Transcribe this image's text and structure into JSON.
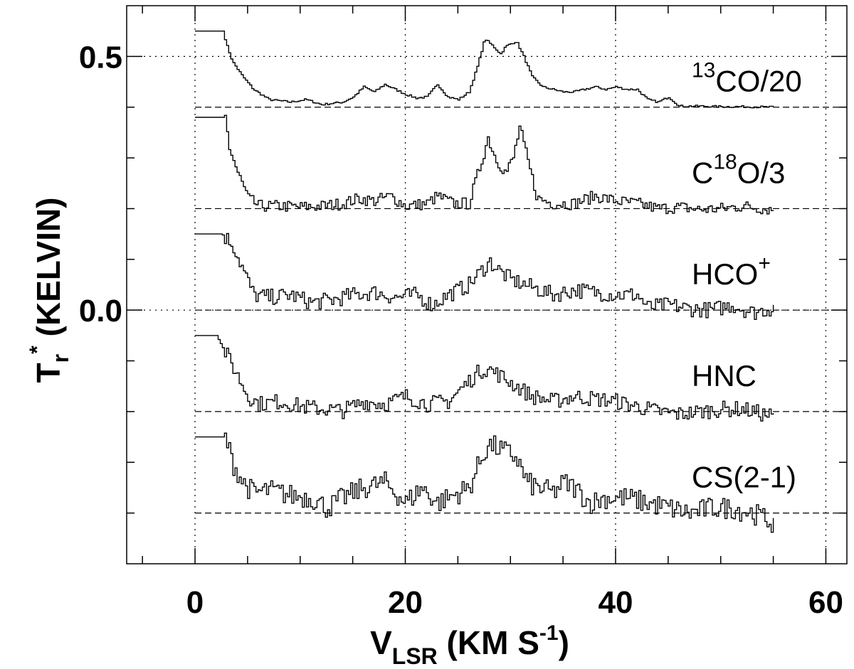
{
  "chart_data": {
    "type": "line",
    "title": "",
    "xlabel": {
      "main": "V",
      "sub": "LSR",
      "rest": " (KM S",
      "sup": "-1",
      "close": ")"
    },
    "ylabel": {
      "main": "T",
      "sub": "r",
      "sup": "*",
      "rest": " (KELVIN)"
    },
    "xlim": [
      -6.5,
      62
    ],
    "ylim": [
      -0.5,
      0.6
    ],
    "x_ticks": [
      0,
      20,
      40,
      60
    ],
    "x_tick_labels": [
      "0",
      "20",
      "40",
      "60"
    ],
    "y_ticks": [
      0.0,
      0.5
    ],
    "y_tick_labels": [
      "0.0",
      "0.5"
    ],
    "grid": true,
    "style": "step",
    "series": [
      {
        "name_parts": [
          {
            "t": "13",
            "sup": true
          },
          {
            "t": "CO/20"
          }
        ],
        "baseline": 0.4,
        "points": [
          [
            0,
            0.55
          ],
          [
            2.6,
            0.55
          ],
          [
            3,
            0.52
          ],
          [
            3.5,
            0.49
          ],
          [
            4.5,
            0.46
          ],
          [
            5.5,
            0.435
          ],
          [
            7,
            0.415
          ],
          [
            9,
            0.41
          ],
          [
            10.5,
            0.415
          ],
          [
            12,
            0.405
          ],
          [
            14,
            0.41
          ],
          [
            15,
            0.42
          ],
          [
            16,
            0.44
          ],
          [
            17,
            0.43
          ],
          [
            18,
            0.445
          ],
          [
            19,
            0.435
          ],
          [
            20,
            0.425
          ],
          [
            21,
            0.418
          ],
          [
            22,
            0.42
          ],
          [
            23,
            0.445
          ],
          [
            24,
            0.42
          ],
          [
            25,
            0.415
          ],
          [
            26,
            0.43
          ],
          [
            26.8,
            0.48
          ],
          [
            27.5,
            0.535
          ],
          [
            28.3,
            0.52
          ],
          [
            29,
            0.505
          ],
          [
            29.5,
            0.52
          ],
          [
            30.5,
            0.53
          ],
          [
            31.2,
            0.5
          ],
          [
            32,
            0.46
          ],
          [
            33,
            0.44
          ],
          [
            34,
            0.435
          ],
          [
            35,
            0.43
          ],
          [
            36,
            0.43
          ],
          [
            37,
            0.435
          ],
          [
            38,
            0.44
          ],
          [
            39,
            0.435
          ],
          [
            40,
            0.44
          ],
          [
            41,
            0.435
          ],
          [
            42,
            0.435
          ],
          [
            43,
            0.415
          ],
          [
            44,
            0.41
          ],
          [
            45,
            0.42
          ],
          [
            46,
            0.402
          ],
          [
            48,
            0.402
          ],
          [
            50,
            0.401
          ],
          [
            52,
            0.401
          ],
          [
            55,
            0.4
          ]
        ]
      },
      {
        "name_parts": [
          {
            "t": "C"
          },
          {
            "t": "18",
            "sup": true
          },
          {
            "t": "O/3"
          }
        ],
        "baseline": 0.2,
        "points": [
          [
            0,
            0.38
          ],
          [
            2.8,
            0.38
          ],
          [
            3.2,
            0.32
          ],
          [
            4,
            0.27
          ],
          [
            5,
            0.22
          ],
          [
            6,
            0.205
          ],
          [
            8,
            0.205
          ],
          [
            10,
            0.203
          ],
          [
            12,
            0.205
          ],
          [
            14,
            0.21
          ],
          [
            15.5,
            0.22
          ],
          [
            17,
            0.215
          ],
          [
            18.5,
            0.225
          ],
          [
            20,
            0.205
          ],
          [
            22,
            0.21
          ],
          [
            23,
            0.225
          ],
          [
            24.5,
            0.21
          ],
          [
            26,
            0.21
          ],
          [
            27,
            0.28
          ],
          [
            27.8,
            0.34
          ],
          [
            28.5,
            0.3
          ],
          [
            29.5,
            0.27
          ],
          [
            30.2,
            0.3
          ],
          [
            30.8,
            0.36
          ],
          [
            31.5,
            0.3
          ],
          [
            32.5,
            0.22
          ],
          [
            34,
            0.21
          ],
          [
            36,
            0.21
          ],
          [
            38,
            0.225
          ],
          [
            40,
            0.215
          ],
          [
            42,
            0.21
          ],
          [
            44,
            0.2
          ],
          [
            46,
            0.203
          ],
          [
            48,
            0.198
          ],
          [
            50,
            0.2
          ],
          [
            52,
            0.205
          ],
          [
            55,
            0.198
          ]
        ]
      },
      {
        "name_parts": [
          {
            "t": "HCO"
          },
          {
            "t": "+",
            "sup": true
          }
        ],
        "baseline": 0.0,
        "points": [
          [
            0,
            0.15
          ],
          [
            2.5,
            0.15
          ],
          [
            3.5,
            0.13
          ],
          [
            4.5,
            0.08
          ],
          [
            5.5,
            0.03
          ],
          [
            7,
            0.025
          ],
          [
            9,
            0.03
          ],
          [
            11,
            0.015
          ],
          [
            13,
            0.02
          ],
          [
            15,
            0.03
          ],
          [
            17,
            0.035
          ],
          [
            19,
            0.025
          ],
          [
            21,
            0.03
          ],
          [
            22.5,
            0.01
          ],
          [
            24,
            0.03
          ],
          [
            26,
            0.05
          ],
          [
            27.5,
            0.085
          ],
          [
            28,
            0.095
          ],
          [
            29,
            0.075
          ],
          [
            30,
            0.06
          ],
          [
            32,
            0.045
          ],
          [
            34,
            0.03
          ],
          [
            36,
            0.04
          ],
          [
            38,
            0.035
          ],
          [
            40,
            0.03
          ],
          [
            42,
            0.03
          ],
          [
            43,
            0.005
          ],
          [
            45,
            0.01
          ],
          [
            47,
            0.003
          ],
          [
            49,
            0.0
          ],
          [
            51,
            0.01
          ],
          [
            53,
            -0.005
          ],
          [
            55,
            0.005
          ]
        ]
      },
      {
        "name_parts": [
          {
            "t": "HNC"
          }
        ],
        "baseline": -0.2,
        "points": [
          [
            0,
            -0.05
          ],
          [
            2,
            -0.05
          ],
          [
            3,
            -0.09
          ],
          [
            4,
            -0.13
          ],
          [
            5,
            -0.17
          ],
          [
            6,
            -0.185
          ],
          [
            8,
            -0.18
          ],
          [
            10,
            -0.19
          ],
          [
            12,
            -0.195
          ],
          [
            14,
            -0.198
          ],
          [
            16,
            -0.18
          ],
          [
            18,
            -0.185
          ],
          [
            20,
            -0.17
          ],
          [
            22,
            -0.185
          ],
          [
            24,
            -0.18
          ],
          [
            25.5,
            -0.15
          ],
          [
            27,
            -0.12
          ],
          [
            27.8,
            -0.115
          ],
          [
            29,
            -0.13
          ],
          [
            30.5,
            -0.15
          ],
          [
            32,
            -0.17
          ],
          [
            34,
            -0.18
          ],
          [
            36,
            -0.17
          ],
          [
            38,
            -0.175
          ],
          [
            40,
            -0.18
          ],
          [
            42,
            -0.19
          ],
          [
            44,
            -0.2
          ],
          [
            46,
            -0.205
          ],
          [
            48,
            -0.2
          ],
          [
            50,
            -0.195
          ],
          [
            52,
            -0.195
          ],
          [
            55,
            -0.21
          ]
        ]
      },
      {
        "name_parts": [
          {
            "t": "CS(2-1)"
          }
        ],
        "baseline": -0.4,
        "points": [
          [
            0,
            -0.25
          ],
          [
            2.8,
            -0.25
          ],
          [
            3.5,
            -0.3
          ],
          [
            4.5,
            -0.34
          ],
          [
            5.5,
            -0.36
          ],
          [
            7,
            -0.355
          ],
          [
            9,
            -0.365
          ],
          [
            11,
            -0.37
          ],
          [
            12.5,
            -0.39
          ],
          [
            14,
            -0.37
          ],
          [
            16,
            -0.35
          ],
          [
            18,
            -0.34
          ],
          [
            20,
            -0.38
          ],
          [
            21.5,
            -0.35
          ],
          [
            23,
            -0.38
          ],
          [
            24,
            -0.37
          ],
          [
            26,
            -0.35
          ],
          [
            27,
            -0.3
          ],
          [
            27.8,
            -0.265
          ],
          [
            28.5,
            -0.27
          ],
          [
            29.5,
            -0.28
          ],
          [
            30.5,
            -0.29
          ],
          [
            31.5,
            -0.34
          ],
          [
            32.5,
            -0.35
          ],
          [
            34,
            -0.36
          ],
          [
            35,
            -0.34
          ],
          [
            36,
            -0.35
          ],
          [
            37.5,
            -0.38
          ],
          [
            39,
            -0.37
          ],
          [
            41,
            -0.37
          ],
          [
            43,
            -0.38
          ],
          [
            45,
            -0.39
          ],
          [
            47,
            -0.4
          ],
          [
            49,
            -0.39
          ],
          [
            51,
            -0.39
          ],
          [
            53,
            -0.4
          ],
          [
            55,
            -0.42
          ]
        ]
      }
    ]
  }
}
